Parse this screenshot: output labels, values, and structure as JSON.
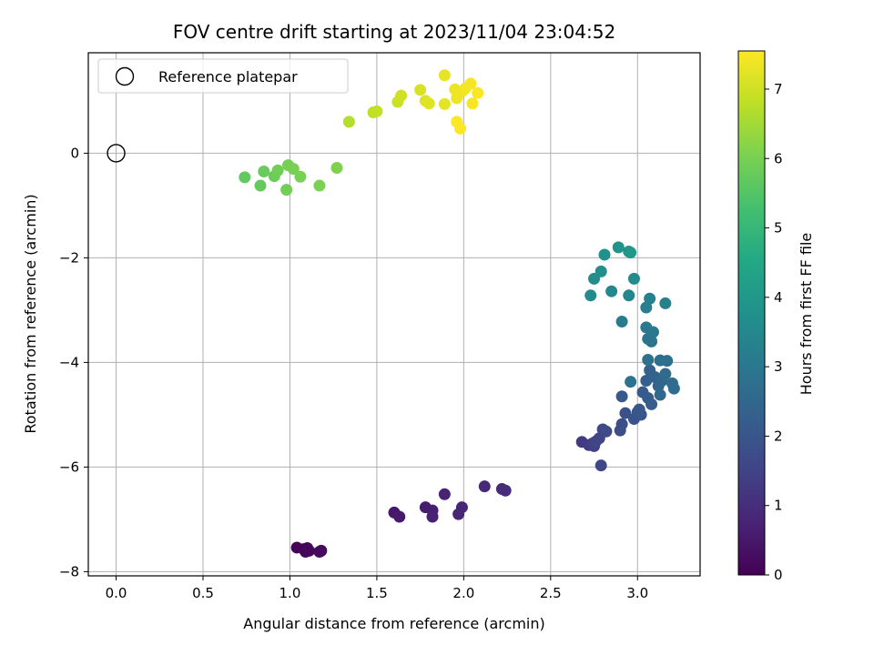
{
  "chart_data": {
    "type": "scatter",
    "title": "FOV centre drift starting at 2023/11/04 23:04:52",
    "xlabel": "Angular distance from reference (arcmin)",
    "ylabel": "Rotation from reference (arcmin)",
    "xlim": [
      -0.16,
      3.36
    ],
    "ylim": [
      -8.08,
      1.92
    ],
    "x_ticks": [
      0.0,
      0.5,
      1.0,
      1.5,
      2.0,
      2.5,
      3.0
    ],
    "x_tick_labels": [
      "0.0",
      "0.5",
      "1.0",
      "1.5",
      "2.0",
      "2.5",
      "3.0"
    ],
    "y_ticks": [
      0,
      -2,
      -4,
      -6,
      -8
    ],
    "y_tick_labels": [
      "0",
      "−2",
      "−4",
      "−6",
      "−8"
    ],
    "grid": true,
    "legend": {
      "position": "top-left",
      "entries": [
        "Reference platepar"
      ]
    },
    "reference_point": {
      "label": "Reference platepar",
      "x": 0.0,
      "y": 0.0
    },
    "colorbar": {
      "label": "Hours from first FF file",
      "min": 0,
      "max": 7.55,
      "ticks": [
        0,
        1,
        2,
        3,
        4,
        5,
        6,
        7
      ],
      "tick_labels": [
        "0",
        "1",
        "2",
        "3",
        "4",
        "5",
        "6",
        "7"
      ],
      "colormap": "viridis"
    },
    "points": [
      {
        "x": 1.04,
        "y": -7.54,
        "h": 0.05
      },
      {
        "x": 1.08,
        "y": -7.57,
        "h": 0.08
      },
      {
        "x": 1.1,
        "y": -7.55,
        "h": 0.1
      },
      {
        "x": 1.11,
        "y": -7.6,
        "h": 0.12
      },
      {
        "x": 1.09,
        "y": -7.62,
        "h": 0.14
      },
      {
        "x": 1.18,
        "y": -7.6,
        "h": 0.18
      },
      {
        "x": 1.17,
        "y": -7.62,
        "h": 0.2
      },
      {
        "x": 1.6,
        "y": -6.87,
        "h": 0.5
      },
      {
        "x": 1.63,
        "y": -6.95,
        "h": 0.55
      },
      {
        "x": 1.78,
        "y": -6.77,
        "h": 0.6
      },
      {
        "x": 1.82,
        "y": -6.83,
        "h": 0.65
      },
      {
        "x": 1.82,
        "y": -6.95,
        "h": 0.68
      },
      {
        "x": 1.89,
        "y": -6.52,
        "h": 0.72
      },
      {
        "x": 1.97,
        "y": -6.9,
        "h": 0.78
      },
      {
        "x": 1.99,
        "y": -6.77,
        "h": 0.8
      },
      {
        "x": 2.12,
        "y": -6.37,
        "h": 0.88
      },
      {
        "x": 2.22,
        "y": -6.42,
        "h": 0.92
      },
      {
        "x": 2.24,
        "y": -6.45,
        "h": 0.95
      },
      {
        "x": 2.68,
        "y": -5.52,
        "h": 1.3
      },
      {
        "x": 2.72,
        "y": -5.58,
        "h": 1.35
      },
      {
        "x": 2.74,
        "y": -5.55,
        "h": 1.4
      },
      {
        "x": 2.75,
        "y": -5.6,
        "h": 1.45
      },
      {
        "x": 2.76,
        "y": -5.51,
        "h": 1.5
      },
      {
        "x": 2.78,
        "y": -5.45,
        "h": 1.55
      },
      {
        "x": 2.79,
        "y": -5.97,
        "h": 1.6
      },
      {
        "x": 2.8,
        "y": -5.28,
        "h": 1.65
      },
      {
        "x": 2.82,
        "y": -5.32,
        "h": 1.7
      },
      {
        "x": 2.9,
        "y": -5.3,
        "h": 1.78
      },
      {
        "x": 2.91,
        "y": -5.18,
        "h": 1.82
      },
      {
        "x": 2.93,
        "y": -4.97,
        "h": 1.88
      },
      {
        "x": 2.98,
        "y": -5.08,
        "h": 1.92
      },
      {
        "x": 3.0,
        "y": -4.95,
        "h": 1.96
      },
      {
        "x": 3.02,
        "y": -5.0,
        "h": 2.0
      },
      {
        "x": 3.01,
        "y": -4.9,
        "h": 2.05
      },
      {
        "x": 2.91,
        "y": -4.65,
        "h": 2.1
      },
      {
        "x": 3.03,
        "y": -4.57,
        "h": 2.15
      },
      {
        "x": 3.06,
        "y": -4.68,
        "h": 2.18
      },
      {
        "x": 3.08,
        "y": -4.8,
        "h": 2.22
      },
      {
        "x": 3.05,
        "y": -4.35,
        "h": 2.3
      },
      {
        "x": 3.07,
        "y": -4.15,
        "h": 2.35
      },
      {
        "x": 3.1,
        "y": -4.28,
        "h": 2.4
      },
      {
        "x": 3.12,
        "y": -4.45,
        "h": 2.45
      },
      {
        "x": 3.14,
        "y": -4.35,
        "h": 2.5
      },
      {
        "x": 3.13,
        "y": -4.62,
        "h": 2.55
      },
      {
        "x": 3.16,
        "y": -4.22,
        "h": 2.6
      },
      {
        "x": 3.2,
        "y": -4.4,
        "h": 2.65
      },
      {
        "x": 3.21,
        "y": -4.5,
        "h": 2.68
      },
      {
        "x": 3.17,
        "y": -3.97,
        "h": 2.72
      },
      {
        "x": 3.13,
        "y": -3.96,
        "h": 2.76
      },
      {
        "x": 3.06,
        "y": -3.95,
        "h": 2.8
      },
      {
        "x": 2.96,
        "y": -4.37,
        "h": 2.84
      },
      {
        "x": 3.08,
        "y": -3.6,
        "h": 2.9
      },
      {
        "x": 3.06,
        "y": -3.55,
        "h": 2.95
      },
      {
        "x": 3.09,
        "y": -3.42,
        "h": 3.0
      },
      {
        "x": 3.05,
        "y": -3.33,
        "h": 3.05
      },
      {
        "x": 2.91,
        "y": -3.22,
        "h": 3.1
      },
      {
        "x": 3.05,
        "y": -2.95,
        "h": 3.2
      },
      {
        "x": 3.07,
        "y": -2.78,
        "h": 3.25
      },
      {
        "x": 3.16,
        "y": -2.87,
        "h": 3.3
      },
      {
        "x": 2.95,
        "y": -2.72,
        "h": 3.4
      },
      {
        "x": 2.85,
        "y": -2.64,
        "h": 3.5
      },
      {
        "x": 2.73,
        "y": -2.72,
        "h": 3.55
      },
      {
        "x": 2.98,
        "y": -2.4,
        "h": 3.6
      },
      {
        "x": 2.75,
        "y": -2.4,
        "h": 3.65
      },
      {
        "x": 2.79,
        "y": -2.26,
        "h": 3.7
      },
      {
        "x": 2.81,
        "y": -1.94,
        "h": 3.78
      },
      {
        "x": 2.89,
        "y": -1.8,
        "h": 3.85
      },
      {
        "x": 2.95,
        "y": -1.88,
        "h": 3.92
      },
      {
        "x": 2.96,
        "y": -1.9,
        "h": 4.0
      },
      {
        "x": 0.74,
        "y": -0.46,
        "h": 5.7
      },
      {
        "x": 0.83,
        "y": -0.62,
        "h": 5.75
      },
      {
        "x": 0.85,
        "y": -0.35,
        "h": 5.8
      },
      {
        "x": 0.91,
        "y": -0.44,
        "h": 5.85
      },
      {
        "x": 0.93,
        "y": -0.33,
        "h": 5.9
      },
      {
        "x": 0.98,
        "y": -0.7,
        "h": 5.93
      },
      {
        "x": 0.99,
        "y": -0.23,
        "h": 5.96
      },
      {
        "x": 1.02,
        "y": -0.3,
        "h": 6.0
      },
      {
        "x": 1.06,
        "y": -0.45,
        "h": 6.02
      },
      {
        "x": 1.17,
        "y": -0.62,
        "h": 6.05
      },
      {
        "x": 1.27,
        "y": -0.28,
        "h": 6.1
      },
      {
        "x": 1.34,
        "y": 0.6,
        "h": 6.7
      },
      {
        "x": 1.48,
        "y": 0.78,
        "h": 6.8
      },
      {
        "x": 1.5,
        "y": 0.8,
        "h": 6.85
      },
      {
        "x": 1.62,
        "y": 0.98,
        "h": 6.95
      },
      {
        "x": 1.64,
        "y": 1.1,
        "h": 7.0
      },
      {
        "x": 1.75,
        "y": 1.21,
        "h": 7.1
      },
      {
        "x": 1.78,
        "y": 1.0,
        "h": 7.15
      },
      {
        "x": 1.8,
        "y": 0.95,
        "h": 7.2
      },
      {
        "x": 1.89,
        "y": 0.94,
        "h": 7.25
      },
      {
        "x": 1.89,
        "y": 1.49,
        "h": 7.3
      },
      {
        "x": 1.95,
        "y": 1.22,
        "h": 7.33
      },
      {
        "x": 1.96,
        "y": 1.05,
        "h": 7.36
      },
      {
        "x": 1.97,
        "y": 1.13,
        "h": 7.38
      },
      {
        "x": 1.99,
        "y": 1.18,
        "h": 7.4
      },
      {
        "x": 2.01,
        "y": 1.24,
        "h": 7.42
      },
      {
        "x": 2.04,
        "y": 1.33,
        "h": 7.45
      },
      {
        "x": 2.05,
        "y": 0.95,
        "h": 7.47
      },
      {
        "x": 2.08,
        "y": 1.15,
        "h": 7.5
      },
      {
        "x": 1.96,
        "y": 0.6,
        "h": 7.52
      },
      {
        "x": 1.98,
        "y": 0.47,
        "h": 7.55
      }
    ]
  }
}
